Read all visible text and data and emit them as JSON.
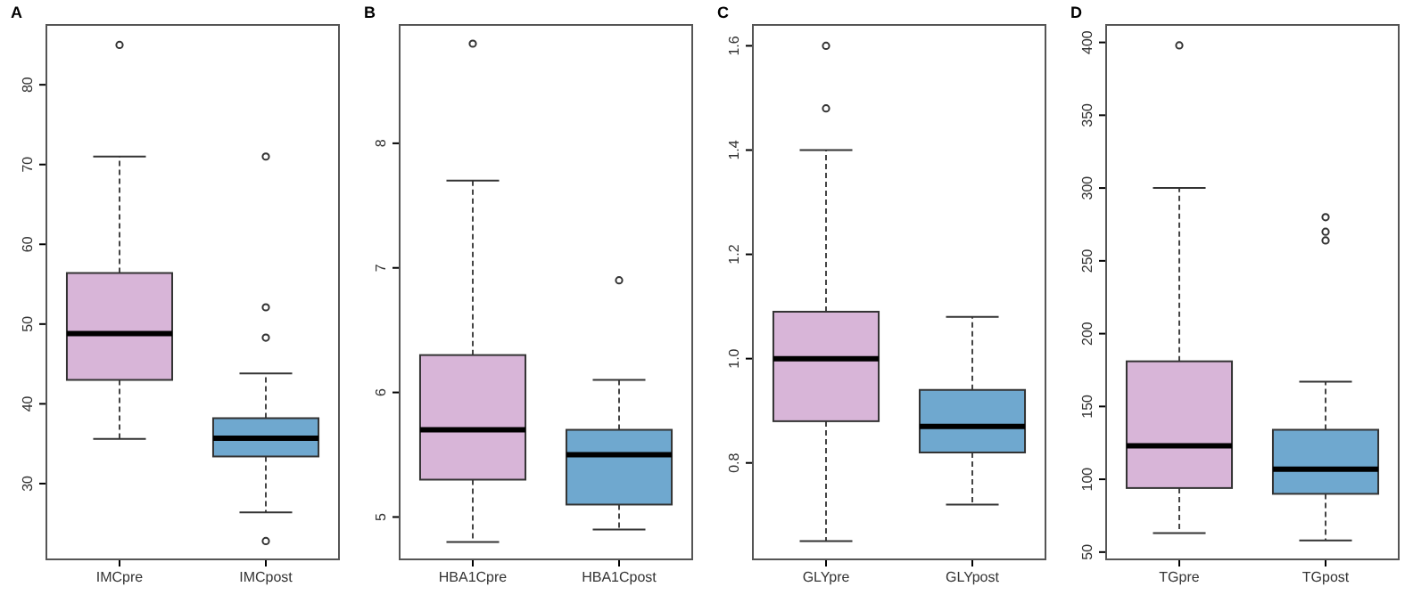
{
  "chart_data": [
    {
      "type": "box",
      "title": "A",
      "categories": [
        "IMCpre",
        "IMCpost"
      ],
      "colors": [
        "#d8b5d8",
        "#6fa8cf"
      ],
      "ylim": [
        20.5,
        87.5
      ],
      "yticks": [
        30,
        40,
        50,
        60,
        70,
        80
      ],
      "boxes": [
        {
          "low": 35.6,
          "q1": 43.0,
          "median": 48.8,
          "q3": 56.4,
          "high": 71,
          "outliers": [
            85
          ]
        },
        {
          "low": 26.4,
          "q1": 33.4,
          "median": 35.7,
          "q3": 38.2,
          "high": 43.8,
          "outliers": [
            71,
            52.1,
            48.3,
            22.8
          ]
        }
      ]
    },
    {
      "type": "box",
      "title": "B",
      "categories": [
        "HBA1Cpre",
        "HBA1Cpost"
      ],
      "colors": [
        "#d8b5d8",
        "#6fa8cf"
      ],
      "ylim": [
        4.66,
        8.95
      ],
      "yticks": [
        5,
        6,
        7,
        8
      ],
      "boxes": [
        {
          "low": 4.8,
          "q1": 5.3,
          "median": 5.7,
          "q3": 6.3,
          "high": 7.7,
          "outliers": [
            8.8
          ]
        },
        {
          "low": 4.9,
          "q1": 5.1,
          "median": 5.5,
          "q3": 5.7,
          "high": 6.1,
          "outliers": [
            6.9
          ]
        }
      ]
    },
    {
      "type": "box",
      "title": "C",
      "categories": [
        "GLYpre",
        "GLYpost"
      ],
      "colors": [
        "#d8b5d8",
        "#6fa8cf"
      ],
      "ylim": [
        0.615,
        1.64
      ],
      "yticks": [
        {
          "value": 0.8,
          "label": "0.8"
        },
        {
          "value": 1,
          "label": "1.0"
        },
        {
          "value": 1.2,
          "label": "1.2"
        },
        {
          "value": 1.4,
          "label": "1.4"
        },
        {
          "value": 1.6,
          "label": "1.6"
        }
      ],
      "boxes": [
        {
          "low": 0.65,
          "q1": 0.88,
          "median": 1.0,
          "q3": 1.09,
          "high": 1.4,
          "outliers": [
            1.6,
            1.48
          ]
        },
        {
          "low": 0.72,
          "q1": 0.82,
          "median": 0.87,
          "q3": 0.94,
          "high": 1.08
        }
      ]
    },
    {
      "type": "box",
      "title": "D",
      "categories": [
        "TGpre",
        "TGpost"
      ],
      "colors": [
        "#d8b5d8",
        "#6fa8cf"
      ],
      "ylim": [
        45,
        412
      ],
      "yticks": [
        50,
        100,
        150,
        200,
        250,
        300,
        350,
        400
      ],
      "boxes": [
        {
          "low": 63,
          "q1": 94,
          "median": 123,
          "q3": 181,
          "high": 300,
          "outliers": [
            398
          ]
        },
        {
          "low": 58,
          "q1": 90,
          "median": 107,
          "q3": 134,
          "high": 167,
          "outliers": [
            280,
            270,
            264
          ]
        }
      ]
    }
  ]
}
